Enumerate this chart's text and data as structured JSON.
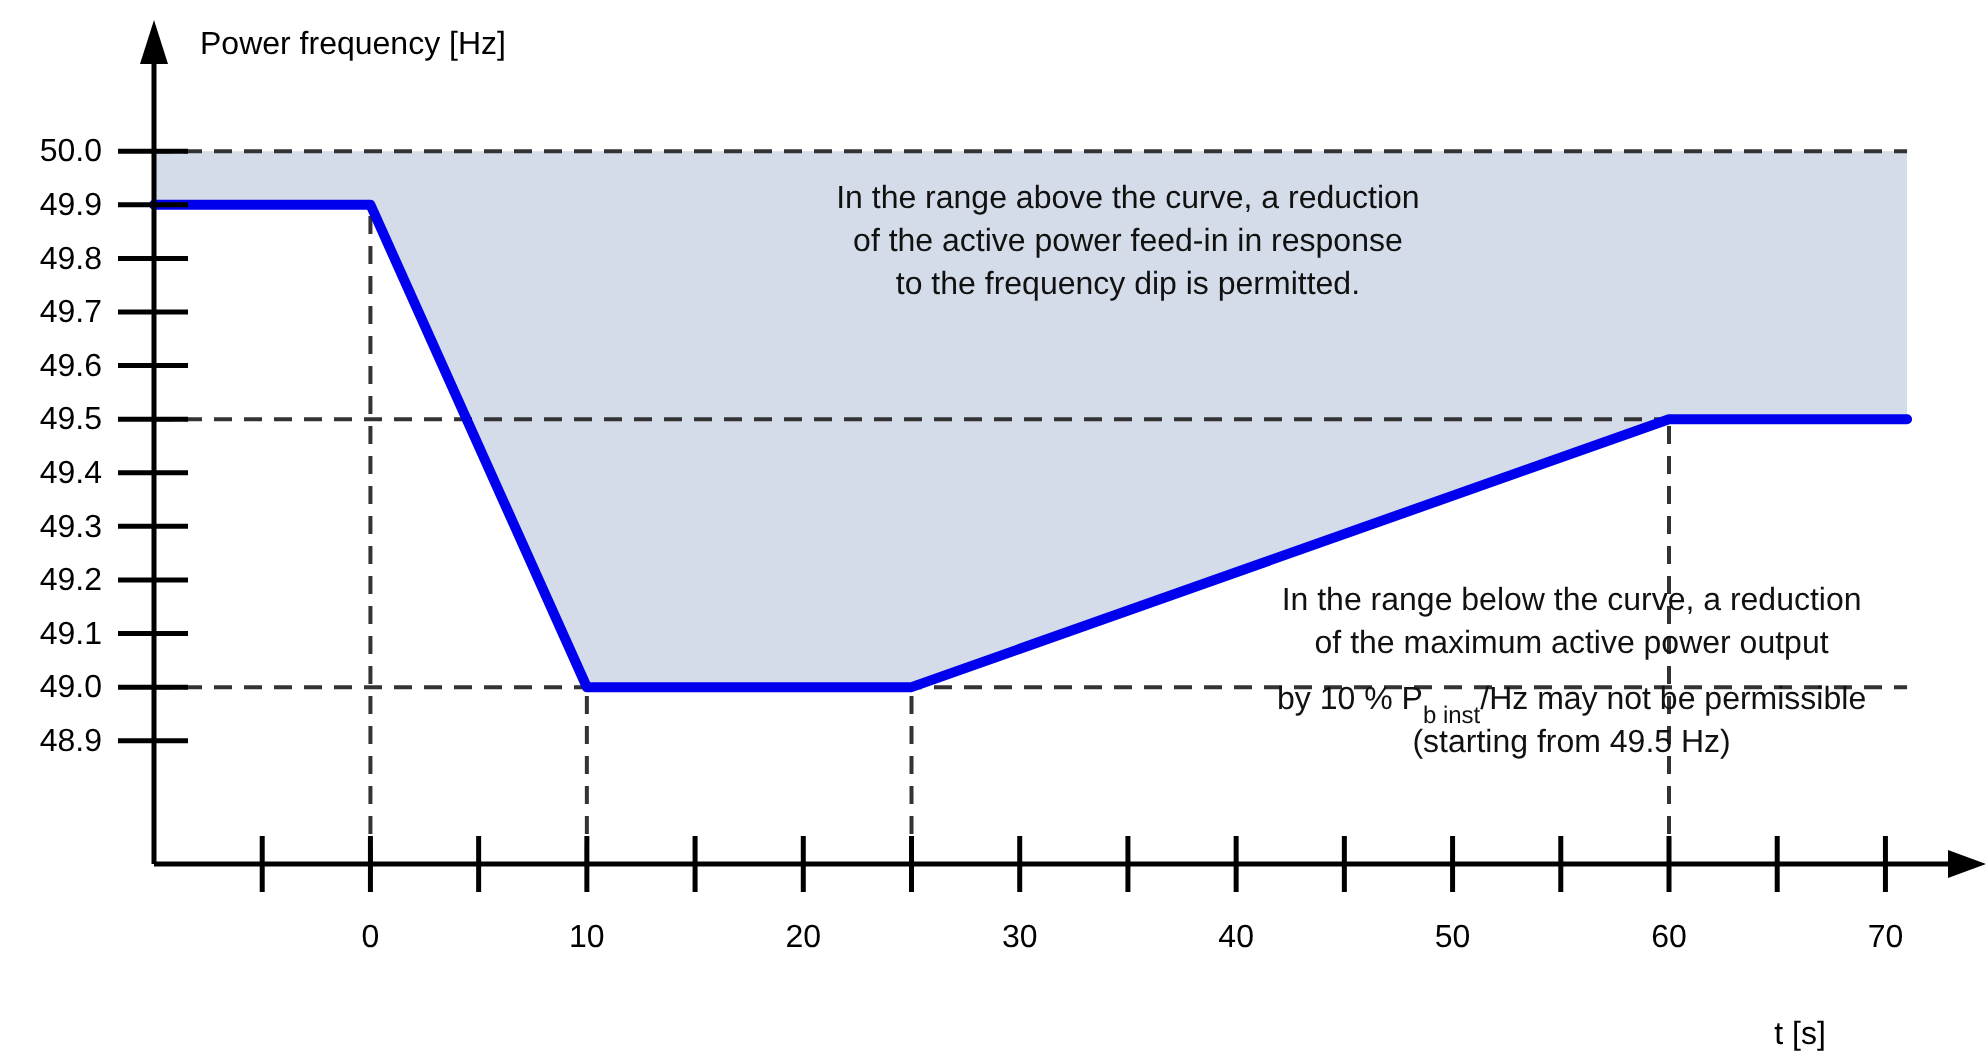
{
  "chart_data": {
    "type": "line",
    "xlabel": "t [s]",
    "ylabel": "Power frequency [Hz]",
    "xlim": [
      -10,
      74
    ],
    "ylim": [
      48.67,
      50.2
    ],
    "xticks": [
      {
        "value": -5,
        "label": null
      },
      0,
      {
        "value": 5,
        "label": null
      },
      10,
      {
        "value": 15,
        "label": null
      },
      20,
      {
        "value": 25,
        "label": null
      },
      30,
      {
        "value": 35,
        "label": null
      },
      40,
      {
        "value": 45,
        "label": null
      },
      50,
      {
        "value": 55,
        "label": null
      },
      60,
      {
        "value": 65,
        "label": null
      },
      70
    ],
    "yticks": [
      {
        "value": 48.9,
        "label": "48.9"
      },
      {
        "value": 49.0,
        "label": "49.0"
      },
      {
        "value": 49.1,
        "label": "49.1"
      },
      {
        "value": 49.2,
        "label": "49.2"
      },
      {
        "value": 49.3,
        "label": "49.3"
      },
      {
        "value": 49.4,
        "label": "49.4"
      },
      {
        "value": 49.5,
        "label": "49.5"
      },
      {
        "value": 49.6,
        "label": "49.6"
      },
      {
        "value": 49.7,
        "label": "49.7"
      },
      {
        "value": 49.8,
        "label": "49.8"
      },
      {
        "value": 49.9,
        "label": "49.9"
      },
      {
        "value": 50.0,
        "label": "50.0"
      }
    ],
    "series": [
      {
        "color": "#0000ee",
        "x": [
          -10,
          0,
          10,
          25,
          60,
          71
        ],
        "values": [
          49.9,
          49.9,
          49.0,
          49.0,
          49.5,
          49.5
        ],
        "lower": [
          49.9,
          49.9,
          49.0,
          49.0,
          49.5,
          49.5
        ],
        "upper": [
          50.0,
          50.0,
          50.0,
          50.0,
          50.0,
          50.0
        ]
      }
    ],
    "ref_lines": [
      {
        "axis": "y",
        "value": 50.0,
        "line_style": "dashed"
      },
      {
        "axis": "y",
        "value": 49.5,
        "line_style": "dashed"
      },
      {
        "axis": "y",
        "value": 49.0,
        "line_style": "dashed"
      },
      {
        "axis": "x",
        "value": 0,
        "line_style": "dashed"
      },
      {
        "axis": "x",
        "value": 10,
        "line_style": "dashed"
      },
      {
        "axis": "x",
        "value": 25,
        "line_style": "dashed"
      },
      {
        "axis": "x",
        "value": 60,
        "line_style": "dashed"
      }
    ],
    "annotations": [
      "In the range above the curve, a reduction\nof the active power feed-in in response\nto the frequency dip is permitted.",
      "In the range below the curve, a reduction\nof the maximum active power output\nby 10 % P$_{b inst}$/Hz may not be permissible\n(starting from 49.5 Hz)"
    ],
    "marker": "none",
    "line_style": "solid"
  }
}
